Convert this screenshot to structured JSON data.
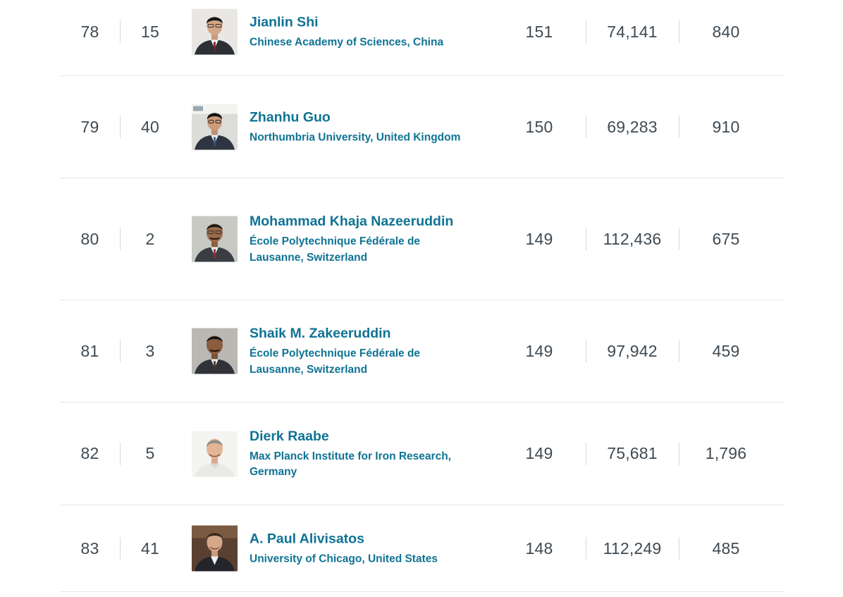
{
  "colors": {
    "link": "#0f7394",
    "number": "#3f4a52",
    "divider": "#cfdbe2",
    "row_border": "#dfe7ec"
  },
  "rows": [
    {
      "rank": "78",
      "national_rank": "15",
      "name": "Jianlin Shi",
      "institution": "Chinese Academy of Sciences, China",
      "h_index": "151",
      "citations": "74,141",
      "publications": "840"
    },
    {
      "rank": "79",
      "national_rank": "40",
      "name": "Zhanhu Guo",
      "institution": "Northumbria University, United Kingdom",
      "h_index": "150",
      "citations": "69,283",
      "publications": "910"
    },
    {
      "rank": "80",
      "national_rank": "2",
      "name": "Mohammad Khaja Nazeeruddin",
      "institution": "École Polytechnique Fédérale de Lausanne, Switzerland",
      "h_index": "149",
      "citations": "112,436",
      "publications": "675"
    },
    {
      "rank": "81",
      "national_rank": "3",
      "name": "Shaik M. Zakeeruddin",
      "institution": "École Polytechnique Fédérale de Lausanne, Switzerland",
      "h_index": "149",
      "citations": "97,942",
      "publications": "459"
    },
    {
      "rank": "82",
      "national_rank": "5",
      "name": "Dierk Raabe",
      "institution": "Max Planck Institute for Iron Research, Germany",
      "h_index": "149",
      "citations": "75,681",
      "publications": "1,796"
    },
    {
      "rank": "83",
      "national_rank": "41",
      "name": "A. Paul Alivisatos",
      "institution": "University of Chicago, United States",
      "h_index": "148",
      "citations": "112,249",
      "publications": "485"
    }
  ]
}
